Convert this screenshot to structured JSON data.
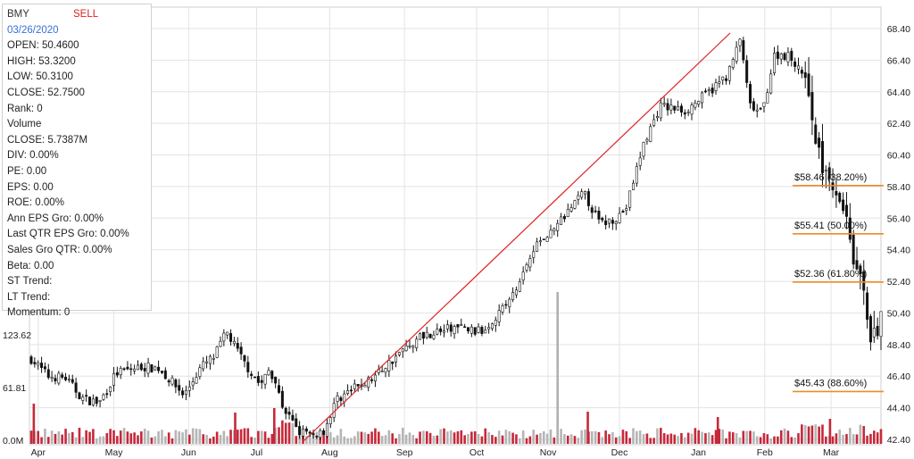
{
  "info": {
    "ticker": "BMY",
    "signal": "SELL",
    "date": "03/26/2020",
    "lines": [
      "OPEN: 50.4600",
      "HIGH: 53.3200",
      "LOW: 50.3100",
      "CLOSE: 52.7500",
      "Rank: 0",
      "Volume",
      "CLOSE: 5.7387M",
      "DIV: 0.00%",
      "PE: 0.00",
      "EPS: 0.00",
      "ROE: 0.00%",
      "Ann EPS Gro: 0.00%",
      "Last QTR EPS Gro: 0.00%",
      "Sales Gro QTR: 0.00%",
      "Beta: 0.00",
      "ST Trend:",
      "LT Trend:",
      "Momentum: 0"
    ]
  },
  "chart_data": {
    "type": "candlestick",
    "price_axis": {
      "min": 42.4,
      "max": 68.4,
      "ticks": [
        "68.40",
        "66.40",
        "64.40",
        "62.40",
        "60.40",
        "58.40",
        "56.40",
        "54.40",
        "52.40",
        "50.40",
        "48.40",
        "46.40",
        "44.40",
        "42.40"
      ]
    },
    "volume_axis": {
      "ticks": [
        "123.62",
        "61.81",
        "0.0M"
      ]
    },
    "x_axis": {
      "months": [
        "Apr",
        "May",
        "Jun",
        "Jul",
        "Aug",
        "Sep",
        "Oct",
        "Nov",
        "Dec",
        "Jan",
        "Feb",
        "Mar"
      ]
    },
    "trendline": {
      "start": {
        "month": "Jul",
        "price": 42.4
      },
      "end": {
        "month": "Jan",
        "price": 68.3
      }
    },
    "fibonacci": [
      {
        "label": "$58.46 (38.20%)",
        "price": 58.46
      },
      {
        "label": "$55.41 (50.00%)",
        "price": 55.41
      },
      {
        "label": "$52.36 (61.80%)",
        "price": 52.36
      },
      {
        "label": "$45.43 (88.60%)",
        "price": 45.43
      }
    ],
    "price_path": [
      [
        0,
        47.5
      ],
      [
        0.02,
        46.4
      ],
      [
        0.04,
        46.3
      ],
      [
        0.06,
        45.0
      ],
      [
        0.08,
        44.7
      ],
      [
        0.1,
        46.6
      ],
      [
        0.13,
        47.0
      ],
      [
        0.15,
        46.9
      ],
      [
        0.18,
        45.2
      ],
      [
        0.2,
        47.0
      ],
      [
        0.215,
        47.6
      ],
      [
        0.23,
        49.2
      ],
      [
        0.25,
        47.3
      ],
      [
        0.27,
        45.8
      ],
      [
        0.28,
        46.8
      ],
      [
        0.3,
        44.0
      ],
      [
        0.315,
        43.0
      ],
      [
        0.33,
        42.6
      ],
      [
        0.345,
        43.0
      ],
      [
        0.36,
        45.0
      ],
      [
        0.4,
        46.2
      ],
      [
        0.43,
        47.7
      ],
      [
        0.46,
        49.0
      ],
      [
        0.5,
        49.5
      ],
      [
        0.53,
        49.2
      ],
      [
        0.57,
        51.7
      ],
      [
        0.59,
        54.5
      ],
      [
        0.62,
        56.0
      ],
      [
        0.65,
        58.0
      ],
      [
        0.67,
        56.0
      ],
      [
        0.69,
        56.5
      ],
      [
        0.7,
        57.0
      ],
      [
        0.72,
        61.0
      ],
      [
        0.74,
        63.5
      ],
      [
        0.77,
        63.2
      ],
      [
        0.8,
        64.5
      ],
      [
        0.82,
        65.5
      ],
      [
        0.835,
        67.8
      ],
      [
        0.845,
        63.5
      ],
      [
        0.86,
        63.0
      ],
      [
        0.875,
        66.8
      ],
      [
        0.89,
        66.7
      ],
      [
        0.905,
        66.0
      ],
      [
        0.915,
        64.5
      ],
      [
        0.925,
        60.5
      ],
      [
        0.94,
        59.0
      ],
      [
        0.955,
        57.5
      ],
      [
        0.965,
        55.2
      ],
      [
        0.97,
        53.2
      ],
      [
        0.98,
        51.5
      ],
      [
        0.99,
        48.4
      ],
      [
        1.0,
        50.0
      ]
    ],
    "volume_spike": {
      "month_position": 0.62
    }
  }
}
